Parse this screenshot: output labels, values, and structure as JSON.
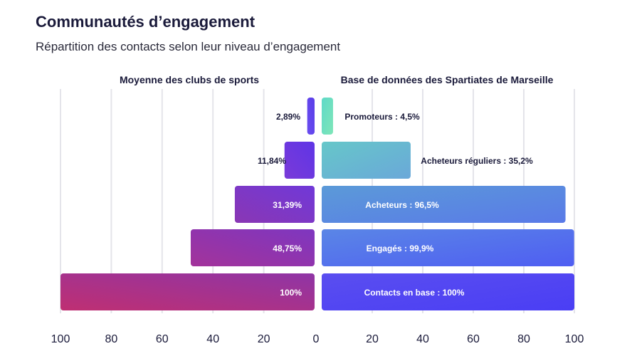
{
  "header": {
    "title": "Communautés d’engagement",
    "subtitle": "Répartition des contacts selon leur niveau d’engagement"
  },
  "chart_data": {
    "type": "bar",
    "orientation": "diverging-horizontal",
    "categories": [
      "Promoteurs",
      "Acheteurs réguliers",
      "Acheteurs",
      "Engagés",
      "Contacts en base"
    ],
    "left_series": {
      "name": "Moyenne des clubs de sports",
      "values": [
        2.89,
        11.84,
        31.39,
        48.75,
        100
      ],
      "labels": [
        "2,89%",
        "11,84%",
        "31,39%",
        "48,75%",
        "100%"
      ],
      "colors": [
        "#5a3ee8",
        "#6a33d6",
        "#7a35c2",
        "#95339f",
        "#b52f7a"
      ]
    },
    "right_series": {
      "name": "Base de données des Spartiates de Marseille",
      "values": [
        4.5,
        35.2,
        96.5,
        99.9,
        100
      ],
      "labels": [
        "Promoteurs : 4,5%",
        "Acheteurs réguliers : 35,2%",
        "Acheteurs : 96,5%",
        "Engagés : 99,9%",
        "Contacts en base : 100%"
      ],
      "colors": [
        "#6fe0c0",
        "#6ab8cf",
        "#5a8ce0",
        "#5470ef",
        "#5a3df0"
      ]
    },
    "x_ticks_left": [
      "100",
      "80",
      "60",
      "40",
      "20",
      "0"
    ],
    "x_ticks_right": [
      "20",
      "40",
      "60",
      "80",
      "100"
    ],
    "xlim": [
      0,
      100
    ],
    "grid": true
  }
}
